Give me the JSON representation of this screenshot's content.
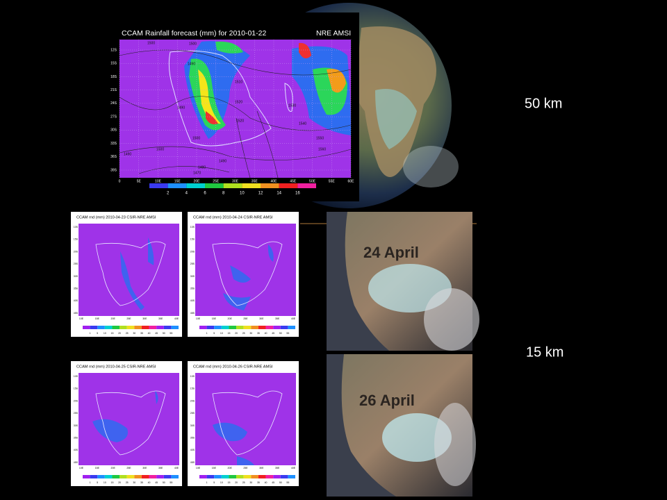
{
  "labels": {
    "coarse": "50 km",
    "fine": "15 km"
  },
  "main_map": {
    "title": "CCAM Rainfall forecast (mm) for 2010-01-22",
    "credit": "NRE AMSI",
    "x_labels": [
      "0",
      "5E",
      "10E",
      "15E",
      "20E",
      "25E",
      "30E",
      "35E",
      "40E",
      "45E",
      "50E",
      "55E",
      "60E"
    ],
    "y_labels": [
      "12S",
      "15S",
      "18S",
      "21S",
      "24S",
      "27S",
      "30S",
      "33S",
      "36S",
      "39S"
    ],
    "colorbar_labels": [
      2,
      4,
      6,
      8,
      10,
      12,
      14,
      16
    ],
    "contour_labels": [
      1500,
      1500,
      1490,
      1510,
      1520,
      1490,
      1520,
      1500,
      1530,
      1540,
      1550,
      1560,
      1500,
      1490,
      1480,
      1470,
      1490
    ]
  },
  "small_maps": [
    {
      "title": "CCAM rnd (mm) 2010-04-23 CSIR-NRE AMSI"
    },
    {
      "title": "CCAM rnd (mm) 2010-04-24 CSIR-NRE AMSI"
    },
    {
      "title": "CCAM rnd (mm) 2010-04-25 CSIR-NRE AMSI"
    },
    {
      "title": "CCAM rnd (mm) 2010-04-26 CSIR-NRE AMSI"
    }
  ],
  "small_x_labels": [
    "10E",
    "15E",
    "20E",
    "25E",
    "30E",
    "35E",
    "40E"
  ],
  "small_y_labels": [
    "10S",
    "15S",
    "20S",
    "25S",
    "30S",
    "35S",
    "40S",
    "45S"
  ],
  "small_colorbar_labels": [
    1,
    5,
    10,
    15,
    20,
    25,
    30,
    35,
    40,
    45,
    50,
    55
  ],
  "satellite": [
    {
      "label": "24 April"
    },
    {
      "label": "26 April"
    }
  ]
}
